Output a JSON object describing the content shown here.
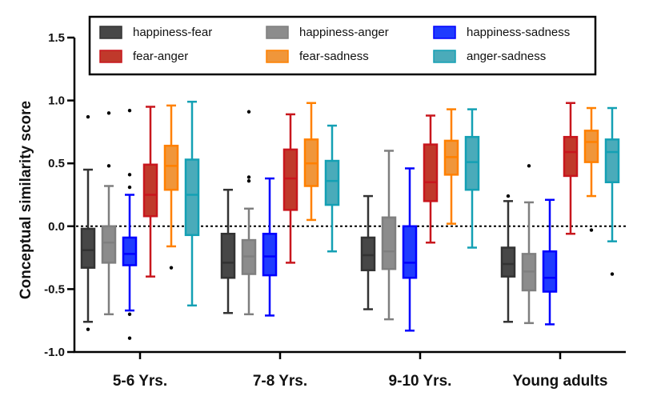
{
  "chart_data": {
    "type": "box",
    "title": "",
    "xlabel": "",
    "ylabel": "Conceptual similarity score",
    "ylim": [
      -1.0,
      1.5
    ],
    "yticks": [
      -1.0,
      -0.5,
      0.0,
      0.5,
      1.0,
      1.5
    ],
    "ytick_labels": [
      "-1.0",
      "-0.5",
      "0.0",
      "0.5",
      "1.0",
      "1.5"
    ],
    "reference_line": 0.0,
    "grid": false,
    "legend_position": "top",
    "categories": [
      "5-6 Yrs.",
      "7-8 Yrs.",
      "9-10 Yrs.",
      "Young adults"
    ],
    "series": [
      {
        "name": "happiness-fear",
        "stroke": "#333333",
        "fill": "#474747",
        "boxes": [
          {
            "whisker_low": -0.76,
            "q1": -0.33,
            "median": -0.19,
            "q3": -0.02,
            "whisker_high": 0.45,
            "outliers": [
              0.87,
              -0.82
            ]
          },
          {
            "whisker_low": -0.69,
            "q1": -0.41,
            "median": -0.29,
            "q3": -0.06,
            "whisker_high": 0.29,
            "outliers": []
          },
          {
            "whisker_low": -0.66,
            "q1": -0.35,
            "median": -0.23,
            "q3": -0.09,
            "whisker_high": 0.24,
            "outliers": []
          },
          {
            "whisker_low": -0.76,
            "q1": -0.4,
            "median": -0.3,
            "q3": -0.17,
            "whisker_high": 0.2,
            "outliers": [
              0.24
            ]
          }
        ]
      },
      {
        "name": "happiness-anger",
        "stroke": "#7f7f7f",
        "fill": "#8c8c8c",
        "boxes": [
          {
            "whisker_low": -0.7,
            "q1": -0.29,
            "median": -0.13,
            "q3": 0.0,
            "whisker_high": 0.32,
            "outliers": [
              0.9,
              0.48
            ]
          },
          {
            "whisker_low": -0.7,
            "q1": -0.38,
            "median": -0.24,
            "q3": -0.11,
            "whisker_high": 0.14,
            "outliers": [
              0.91,
              0.39,
              0.36
            ]
          },
          {
            "whisker_low": -0.74,
            "q1": -0.34,
            "median": -0.2,
            "q3": 0.07,
            "whisker_high": 0.6,
            "outliers": []
          },
          {
            "whisker_low": -0.77,
            "q1": -0.51,
            "median": -0.36,
            "q3": -0.22,
            "whisker_high": 0.19,
            "outliers": [
              0.48
            ]
          }
        ]
      },
      {
        "name": "happiness-sadness",
        "stroke": "#0000ff",
        "fill": "#1f3bff",
        "boxes": [
          {
            "whisker_low": -0.67,
            "q1": -0.31,
            "median": -0.22,
            "q3": -0.09,
            "whisker_high": 0.25,
            "outliers": [
              0.92,
              0.41,
              0.31,
              -0.7,
              -0.89
            ]
          },
          {
            "whisker_low": -0.71,
            "q1": -0.39,
            "median": -0.24,
            "q3": -0.06,
            "whisker_high": 0.38,
            "outliers": []
          },
          {
            "whisker_low": -0.83,
            "q1": -0.41,
            "median": -0.29,
            "q3": 0.0,
            "whisker_high": 0.46,
            "outliers": []
          },
          {
            "whisker_low": -0.78,
            "q1": -0.52,
            "median": -0.41,
            "q3": -0.2,
            "whisker_high": 0.21,
            "outliers": []
          }
        ]
      },
      {
        "name": "fear-anger",
        "stroke": "#c8161d",
        "fill": "#c0392b",
        "boxes": [
          {
            "whisker_low": -0.4,
            "q1": 0.08,
            "median": 0.25,
            "q3": 0.49,
            "whisker_high": 0.95,
            "outliers": []
          },
          {
            "whisker_low": -0.29,
            "q1": 0.13,
            "median": 0.38,
            "q3": 0.61,
            "whisker_high": 0.89,
            "outliers": []
          },
          {
            "whisker_low": -0.13,
            "q1": 0.2,
            "median": 0.35,
            "q3": 0.65,
            "whisker_high": 0.88,
            "outliers": []
          },
          {
            "whisker_low": -0.06,
            "q1": 0.4,
            "median": 0.59,
            "q3": 0.71,
            "whisker_high": 0.98,
            "outliers": []
          }
        ]
      },
      {
        "name": "fear-sadness",
        "stroke": "#ff8000",
        "fill": "#f0963a",
        "boxes": [
          {
            "whisker_low": -0.16,
            "q1": 0.29,
            "median": 0.48,
            "q3": 0.64,
            "whisker_high": 0.96,
            "outliers": [
              -0.33
            ]
          },
          {
            "whisker_low": 0.05,
            "q1": 0.32,
            "median": 0.5,
            "q3": 0.69,
            "whisker_high": 0.98,
            "outliers": []
          },
          {
            "whisker_low": 0.02,
            "q1": 0.41,
            "median": 0.55,
            "q3": 0.68,
            "whisker_high": 0.93,
            "outliers": []
          },
          {
            "whisker_low": 0.24,
            "q1": 0.51,
            "median": 0.67,
            "q3": 0.76,
            "whisker_high": 0.94,
            "outliers": [
              -0.03
            ]
          }
        ]
      },
      {
        "name": "anger-sadness",
        "stroke": "#14a0b4",
        "fill": "#4aabba",
        "boxes": [
          {
            "whisker_low": -0.63,
            "q1": -0.07,
            "median": 0.25,
            "q3": 0.53,
            "whisker_high": 0.99,
            "outliers": []
          },
          {
            "whisker_low": -0.2,
            "q1": 0.17,
            "median": 0.36,
            "q3": 0.52,
            "whisker_high": 0.8,
            "outliers": []
          },
          {
            "whisker_low": -0.17,
            "q1": 0.29,
            "median": 0.51,
            "q3": 0.71,
            "whisker_high": 0.93,
            "outliers": []
          },
          {
            "whisker_low": -0.12,
            "q1": 0.35,
            "median": 0.59,
            "q3": 0.69,
            "whisker_high": 0.94,
            "outliers": [
              -0.38
            ]
          }
        ]
      }
    ]
  }
}
